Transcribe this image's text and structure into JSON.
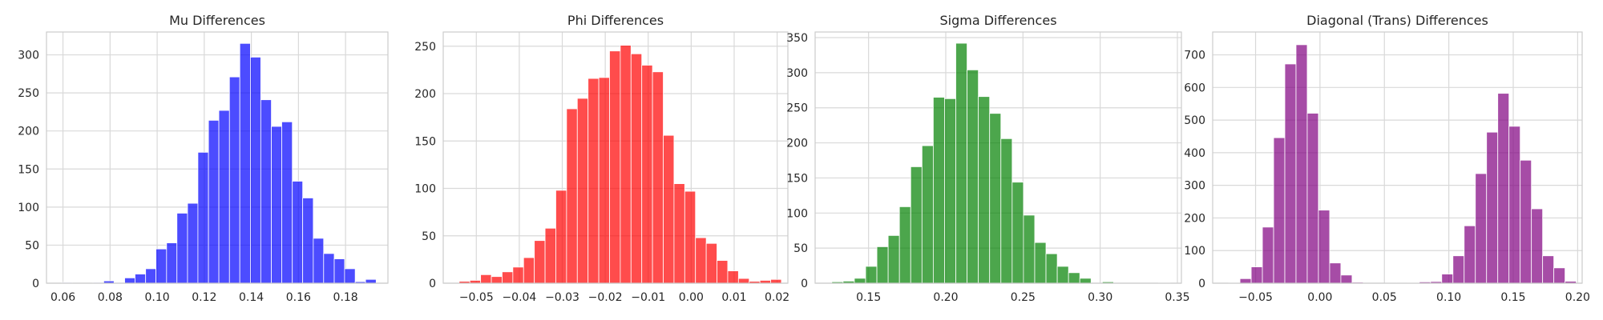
{
  "chart_data": [
    {
      "type": "bar",
      "title": "Mu Differences",
      "xlabel": "",
      "ylabel": "",
      "color": "#0000ff",
      "xlim": [
        0.053,
        0.198
      ],
      "ylim": [
        0,
        330
      ],
      "xticks": [
        "0.06",
        "0.08",
        "0.10",
        "0.12",
        "0.14",
        "0.16",
        "0.18"
      ],
      "yticks": [
        "0",
        "50",
        "100",
        "150",
        "200",
        "250",
        "300"
      ],
      "grid": true,
      "bins": [
        {
          "x0": 0.0595,
          "x1": 0.0639,
          "count": 1
        },
        {
          "x0": 0.0639,
          "x1": 0.0684,
          "count": 0
        },
        {
          "x0": 0.0684,
          "x1": 0.0728,
          "count": 0
        },
        {
          "x0": 0.0728,
          "x1": 0.0773,
          "count": 1
        },
        {
          "x0": 0.0773,
          "x1": 0.0817,
          "count": 3
        },
        {
          "x0": 0.0817,
          "x1": 0.0862,
          "count": 1
        },
        {
          "x0": 0.0862,
          "x1": 0.0906,
          "count": 7
        },
        {
          "x0": 0.0906,
          "x1": 0.0951,
          "count": 12
        },
        {
          "x0": 0.0951,
          "x1": 0.0995,
          "count": 19
        },
        {
          "x0": 0.0995,
          "x1": 0.104,
          "count": 45
        },
        {
          "x0": 0.104,
          "x1": 0.1084,
          "count": 53
        },
        {
          "x0": 0.1084,
          "x1": 0.1129,
          "count": 92
        },
        {
          "x0": 0.1129,
          "x1": 0.1173,
          "count": 105
        },
        {
          "x0": 0.1173,
          "x1": 0.1218,
          "count": 172
        },
        {
          "x0": 0.1218,
          "x1": 0.1262,
          "count": 214
        },
        {
          "x0": 0.1262,
          "x1": 0.1307,
          "count": 227
        },
        {
          "x0": 0.1307,
          "x1": 0.1351,
          "count": 271
        },
        {
          "x0": 0.1351,
          "x1": 0.1396,
          "count": 315
        },
        {
          "x0": 0.1396,
          "x1": 0.144,
          "count": 297
        },
        {
          "x0": 0.144,
          "x1": 0.1485,
          "count": 241
        },
        {
          "x0": 0.1485,
          "x1": 0.1529,
          "count": 206
        },
        {
          "x0": 0.1529,
          "x1": 0.1574,
          "count": 212
        },
        {
          "x0": 0.1574,
          "x1": 0.1618,
          "count": 134
        },
        {
          "x0": 0.1618,
          "x1": 0.1663,
          "count": 112
        },
        {
          "x0": 0.1663,
          "x1": 0.1707,
          "count": 59
        },
        {
          "x0": 0.1707,
          "x1": 0.1752,
          "count": 39
        },
        {
          "x0": 0.1752,
          "x1": 0.1796,
          "count": 32
        },
        {
          "x0": 0.1796,
          "x1": 0.1841,
          "count": 19
        },
        {
          "x0": 0.1841,
          "x1": 0.1885,
          "count": 2
        },
        {
          "x0": 0.1885,
          "x1": 0.193,
          "count": 5
        }
      ]
    },
    {
      "type": "bar",
      "title": "Phi Differences",
      "xlabel": "",
      "ylabel": "",
      "color": "#ff0000",
      "xlim": [
        -0.0577,
        0.0225
      ],
      "ylim": [
        0,
        265
      ],
      "xticks": [
        "−0.05",
        "−0.04",
        "−0.03",
        "−0.02",
        "−0.01",
        "0.00",
        "0.01",
        "0.02"
      ],
      "yticks": [
        "0",
        "50",
        "100",
        "150",
        "200",
        "250"
      ],
      "grid": true,
      "bins": [
        {
          "x0": -0.054,
          "x1": -0.0515,
          "count": 2
        },
        {
          "x0": -0.0515,
          "x1": -0.049,
          "count": 3
        },
        {
          "x0": -0.049,
          "x1": -0.0465,
          "count": 9
        },
        {
          "x0": -0.0465,
          "x1": -0.044,
          "count": 7
        },
        {
          "x0": -0.044,
          "x1": -0.0415,
          "count": 12
        },
        {
          "x0": -0.0415,
          "x1": -0.039,
          "count": 17
        },
        {
          "x0": -0.039,
          "x1": -0.0365,
          "count": 27
        },
        {
          "x0": -0.0365,
          "x1": -0.034,
          "count": 45
        },
        {
          "x0": -0.034,
          "x1": -0.0315,
          "count": 58
        },
        {
          "x0": -0.0315,
          "x1": -0.029,
          "count": 98
        },
        {
          "x0": -0.029,
          "x1": -0.0265,
          "count": 184
        },
        {
          "x0": -0.0265,
          "x1": -0.024,
          "count": 195
        },
        {
          "x0": -0.024,
          "x1": -0.0215,
          "count": 216
        },
        {
          "x0": -0.0215,
          "x1": -0.019,
          "count": 217
        },
        {
          "x0": -0.019,
          "x1": -0.0165,
          "count": 245
        },
        {
          "x0": -0.0165,
          "x1": -0.014,
          "count": 251
        },
        {
          "x0": -0.014,
          "x1": -0.0115,
          "count": 242
        },
        {
          "x0": -0.0115,
          "x1": -0.009,
          "count": 230
        },
        {
          "x0": -0.009,
          "x1": -0.0065,
          "count": 223
        },
        {
          "x0": -0.0065,
          "x1": -0.004,
          "count": 156
        },
        {
          "x0": -0.004,
          "x1": -0.0015,
          "count": 105
        },
        {
          "x0": -0.0015,
          "x1": 0.001,
          "count": 97
        },
        {
          "x0": 0.001,
          "x1": 0.0035,
          "count": 48
        },
        {
          "x0": 0.0035,
          "x1": 0.006,
          "count": 42
        },
        {
          "x0": 0.006,
          "x1": 0.0085,
          "count": 24
        },
        {
          "x0": 0.0085,
          "x1": 0.011,
          "count": 13
        },
        {
          "x0": 0.011,
          "x1": 0.0135,
          "count": 5
        },
        {
          "x0": 0.0135,
          "x1": 0.016,
          "count": 2
        },
        {
          "x0": 0.016,
          "x1": 0.0185,
          "count": 3
        },
        {
          "x0": 0.0185,
          "x1": 0.021,
          "count": 4
        }
      ]
    },
    {
      "type": "bar",
      "title": "Sigma Differences",
      "xlabel": "",
      "ylabel": "",
      "color": "#008000",
      "xlim": [
        0.1154,
        0.3526
      ],
      "ylim": [
        0,
        358
      ],
      "xticks": [
        "0.15",
        "0.20",
        "0.25",
        "0.30",
        "0.35"
      ],
      "yticks": [
        "0",
        "50",
        "100",
        "150",
        "200",
        "250",
        "300",
        "350"
      ],
      "grid": true,
      "bins": [
        {
          "x0": 0.1262,
          "x1": 0.1335,
          "count": 2
        },
        {
          "x0": 0.1335,
          "x1": 0.1408,
          "count": 3
        },
        {
          "x0": 0.1408,
          "x1": 0.1481,
          "count": 7
        },
        {
          "x0": 0.1481,
          "x1": 0.1554,
          "count": 24
        },
        {
          "x0": 0.1554,
          "x1": 0.1627,
          "count": 52
        },
        {
          "x0": 0.1627,
          "x1": 0.17,
          "count": 68
        },
        {
          "x0": 0.17,
          "x1": 0.1773,
          "count": 109
        },
        {
          "x0": 0.1773,
          "x1": 0.1846,
          "count": 166
        },
        {
          "x0": 0.1846,
          "x1": 0.1919,
          "count": 196
        },
        {
          "x0": 0.1919,
          "x1": 0.1992,
          "count": 265
        },
        {
          "x0": 0.1992,
          "x1": 0.2065,
          "count": 263
        },
        {
          "x0": 0.2065,
          "x1": 0.2138,
          "count": 342
        },
        {
          "x0": 0.2138,
          "x1": 0.2211,
          "count": 304
        },
        {
          "x0": 0.2211,
          "x1": 0.2284,
          "count": 266
        },
        {
          "x0": 0.2284,
          "x1": 0.2357,
          "count": 242
        },
        {
          "x0": 0.2357,
          "x1": 0.243,
          "count": 206
        },
        {
          "x0": 0.243,
          "x1": 0.2503,
          "count": 144
        },
        {
          "x0": 0.2503,
          "x1": 0.2576,
          "count": 97
        },
        {
          "x0": 0.2576,
          "x1": 0.2649,
          "count": 58
        },
        {
          "x0": 0.2649,
          "x1": 0.2722,
          "count": 42
        },
        {
          "x0": 0.2722,
          "x1": 0.2795,
          "count": 24
        },
        {
          "x0": 0.2795,
          "x1": 0.2868,
          "count": 15
        },
        {
          "x0": 0.2868,
          "x1": 0.2941,
          "count": 7
        },
        {
          "x0": 0.2941,
          "x1": 0.3014,
          "count": 0
        },
        {
          "x0": 0.3014,
          "x1": 0.3087,
          "count": 2
        },
        {
          "x0": 0.3087,
          "x1": 0.316,
          "count": 0
        },
        {
          "x0": 0.316,
          "x1": 0.3233,
          "count": 0
        },
        {
          "x0": 0.3233,
          "x1": 0.3306,
          "count": 0
        },
        {
          "x0": 0.3306,
          "x1": 0.3379,
          "count": 0
        },
        {
          "x0": 0.3379,
          "x1": 0.3452,
          "count": 1
        }
      ]
    },
    {
      "type": "bar",
      "title": "Diagonal (Trans) Differences",
      "xlabel": "",
      "ylabel": "",
      "color": "#800080",
      "xlim": [
        -0.0833,
        0.2035
      ],
      "ylim": [
        0,
        770
      ],
      "xticks": [
        "−0.05",
        "0.00",
        "0.05",
        "0.10",
        "0.15",
        "0.20"
      ],
      "yticks": [
        "0",
        "100",
        "200",
        "300",
        "400",
        "500",
        "600",
        "700"
      ],
      "grid": true,
      "bins": [
        {
          "x0": -0.0708,
          "x1": -0.0621,
          "count": 2
        },
        {
          "x0": -0.0621,
          "x1": -0.0534,
          "count": 14
        },
        {
          "x0": -0.0534,
          "x1": -0.0447,
          "count": 50
        },
        {
          "x0": -0.0447,
          "x1": -0.036,
          "count": 172
        },
        {
          "x0": -0.036,
          "x1": -0.0273,
          "count": 446
        },
        {
          "x0": -0.0273,
          "x1": -0.0186,
          "count": 672
        },
        {
          "x0": -0.0186,
          "x1": -0.0099,
          "count": 731
        },
        {
          "x0": -0.0099,
          "x1": -0.0012,
          "count": 521
        },
        {
          "x0": -0.0012,
          "x1": 0.0075,
          "count": 224
        },
        {
          "x0": 0.0075,
          "x1": 0.0162,
          "count": 62
        },
        {
          "x0": 0.0162,
          "x1": 0.0249,
          "count": 25
        },
        {
          "x0": 0.0249,
          "x1": 0.0336,
          "count": 3
        },
        {
          "x0": 0.0336,
          "x1": 0.0423,
          "count": 0
        },
        {
          "x0": 0.0423,
          "x1": 0.051,
          "count": 0
        },
        {
          "x0": 0.051,
          "x1": 0.0597,
          "count": 1
        },
        {
          "x0": 0.0597,
          "x1": 0.0684,
          "count": 1
        },
        {
          "x0": 0.0684,
          "x1": 0.0771,
          "count": 2
        },
        {
          "x0": 0.0771,
          "x1": 0.0858,
          "count": 4
        },
        {
          "x0": 0.0858,
          "x1": 0.0945,
          "count": 5
        },
        {
          "x0": 0.0945,
          "x1": 0.1032,
          "count": 28
        },
        {
          "x0": 0.1032,
          "x1": 0.1119,
          "count": 84
        },
        {
          "x0": 0.1119,
          "x1": 0.1206,
          "count": 176
        },
        {
          "x0": 0.1206,
          "x1": 0.1293,
          "count": 336
        },
        {
          "x0": 0.1293,
          "x1": 0.138,
          "count": 463
        },
        {
          "x0": 0.138,
          "x1": 0.1467,
          "count": 582
        },
        {
          "x0": 0.1467,
          "x1": 0.1554,
          "count": 481
        },
        {
          "x0": 0.1554,
          "x1": 0.1641,
          "count": 377
        },
        {
          "x0": 0.1641,
          "x1": 0.1728,
          "count": 228
        },
        {
          "x0": 0.1728,
          "x1": 0.1815,
          "count": 84
        },
        {
          "x0": 0.1815,
          "x1": 0.1902,
          "count": 47
        },
        {
          "x0": 0.1902,
          "x1": 0.1989,
          "count": 6
        }
      ]
    }
  ]
}
